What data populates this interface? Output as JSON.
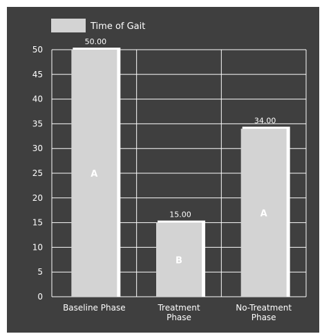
{
  "chart_data": {
    "type": "bar",
    "categories": [
      "Baseline Phase",
      "Treatment Phase",
      "No-Treatment Phase"
    ],
    "category_lines": [
      [
        "Baseline Phase"
      ],
      [
        "Treatment",
        "Phase"
      ],
      [
        "No-Treatment",
        "Phase"
      ]
    ],
    "series": [
      {
        "name": "Time of Gait",
        "values": [
          50,
          15,
          34
        ]
      }
    ],
    "value_labels": [
      "50.00",
      "15.00",
      "34.00"
    ],
    "phase_labels": [
      "A",
      "B",
      "A"
    ],
    "yticks": [
      "0",
      "5",
      "10",
      "15",
      "20",
      "25",
      "30",
      "35",
      "40",
      "45",
      "50"
    ],
    "ylim": [
      0,
      50
    ],
    "ytick_step": 5,
    "grid": true,
    "legend_position": "top-left",
    "colors": {
      "background": "#3f3f3f",
      "bar": "#d3d3d3",
      "bar_shadow": "#ffffff",
      "grid": "#ffffff",
      "text": "#ffffff"
    }
  }
}
